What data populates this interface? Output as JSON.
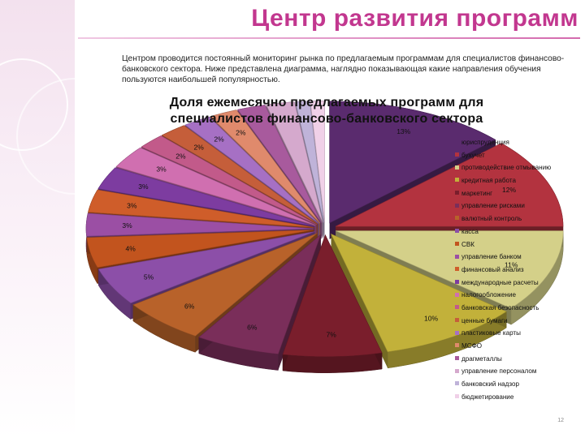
{
  "slide": {
    "title": "Центр развития программ",
    "intro": "Центром проводится постоянный мониторинг рынка по предлагаемым программам для специалистов финансово-банковского сектора. Ниже представлена диаграмма, наглядно показывающая какие направления обучения пользуются наибольшей популярностью.",
    "page_number": "12",
    "accent_color": "#c2378f"
  },
  "chart_data": {
    "type": "pie",
    "style": "3d-exploded",
    "title": "Доля ежемесячно предлагаемых программ для специалистов финансово-банковского сектора",
    "legend_position": "right",
    "categories": [
      "юриспруденция",
      "бухучет",
      "противодействие отмыванию",
      "кредитная работа",
      "маркетинг",
      "управление рисками",
      "валютный контроль",
      "касса",
      "СВК",
      "управление банком",
      "финансовый анализ",
      "международные расчеты",
      "налогообложение",
      "банковская безопасность",
      "ценные бумаги",
      "пластиковые карты",
      "МСФО",
      "драгметаллы",
      "управление персоналом",
      "банковский надзор",
      "бюджетирование"
    ],
    "values": [
      13,
      12,
      11,
      10,
      7,
      6,
      6,
      5,
      4,
      3,
      3,
      3,
      3,
      2,
      2,
      2,
      2,
      2,
      2,
      1,
      1
    ],
    "value_labels": [
      "13%",
      "12%",
      "11%",
      "10%",
      "7%",
      "6%",
      "6%",
      "5%",
      "4%",
      "3%",
      "3%",
      "3%",
      "3%",
      "2%",
      "2%",
      "2%",
      "2%",
      "",
      "",
      "",
      ""
    ],
    "colors": [
      "#5a2b6e",
      "#b3333f",
      "#d4d089",
      "#c2b13a",
      "#7a1e2c",
      "#7a2e5a",
      "#b8622a",
      "#8c4fa8",
      "#c2541e",
      "#9b4fa4",
      "#cf5d2a",
      "#7d3ca0",
      "#d06fb0",
      "#c25a8a",
      "#c55e3a",
      "#a670c4",
      "#e08a6c",
      "#a85a9d",
      "#d5a9cd",
      "#bfb3d9",
      "#f0d0e8"
    ]
  }
}
